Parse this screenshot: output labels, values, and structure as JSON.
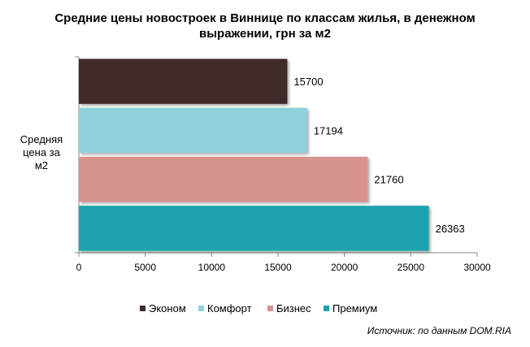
{
  "chart_data": {
    "type": "bar",
    "orientation": "horizontal",
    "title_lines": [
      "Средние цены новостроек в Виннице по классам жилья, в денежном",
      "выражении, грн за м2"
    ],
    "category_lines": [
      "Средняя",
      "цена за",
      "м2"
    ],
    "xlim": [
      0,
      30000
    ],
    "xticks": [
      0,
      5000,
      10000,
      15000,
      20000,
      25000,
      30000
    ],
    "grid": false,
    "legend_position": "bottom",
    "series": [
      {
        "name": "Эконом",
        "value": 15700,
        "color": "#3f2a2c"
      },
      {
        "name": "Комфорт",
        "value": 17194,
        "color": "#8fd1dc"
      },
      {
        "name": "Бизнес",
        "value": 21760,
        "color": "#d8938f"
      },
      {
        "name": "Премиум",
        "value": 26363,
        "color": "#1aa3ad"
      }
    ],
    "source": "Источник: по данным DOM.RIA"
  }
}
